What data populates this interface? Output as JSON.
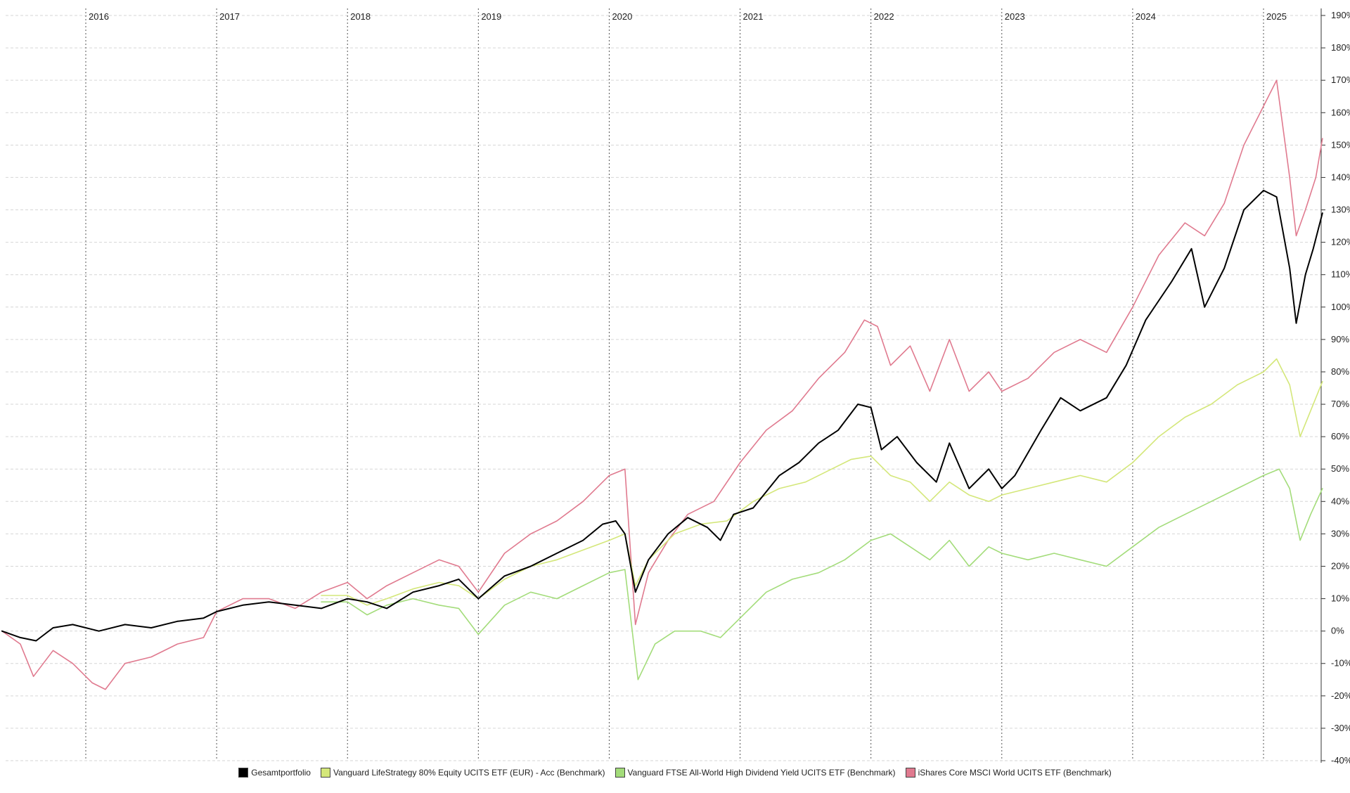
{
  "chart_data": {
    "type": "line",
    "x_axis": {
      "labels": [
        "2016",
        "2017",
        "2018",
        "2019",
        "2020",
        "2021",
        "2022",
        "2023",
        "2024",
        "2025"
      ],
      "position": "top"
    },
    "y_axis": {
      "position": "right",
      "unit": "%",
      "ylim": [
        -40,
        190
      ],
      "ticks": [
        "190%",
        "180%",
        "170%",
        "160%",
        "150%",
        "140%",
        "130%",
        "120%",
        "110%",
        "100%",
        "90%",
        "80%",
        "70%",
        "60%",
        "50%",
        "40%",
        "30%",
        "20%",
        "10%",
        "0%",
        "-10%",
        "-20%",
        "-30%",
        "-40%"
      ]
    },
    "grid": "horizontal dashed, vertical dotted at year boundaries",
    "legend_position": "bottom",
    "series": [
      {
        "name": "Gesamtportfolio",
        "color": "#000000",
        "points": [
          [
            2015.36,
            0
          ],
          [
            2015.5,
            -2
          ],
          [
            2015.62,
            -3
          ],
          [
            2015.75,
            1
          ],
          [
            2015.9,
            2
          ],
          [
            2016.0,
            1
          ],
          [
            2016.1,
            0
          ],
          [
            2016.3,
            2
          ],
          [
            2016.5,
            1
          ],
          [
            2016.7,
            3
          ],
          [
            2016.9,
            4
          ],
          [
            2017.0,
            6
          ],
          [
            2017.2,
            8
          ],
          [
            2017.4,
            9
          ],
          [
            2017.6,
            8
          ],
          [
            2017.8,
            7
          ],
          [
            2018.0,
            10
          ],
          [
            2018.15,
            9
          ],
          [
            2018.3,
            7
          ],
          [
            2018.5,
            12
          ],
          [
            2018.7,
            14
          ],
          [
            2018.85,
            16
          ],
          [
            2019.0,
            10
          ],
          [
            2019.2,
            17
          ],
          [
            2019.4,
            20
          ],
          [
            2019.6,
            24
          ],
          [
            2019.8,
            28
          ],
          [
            2019.95,
            33
          ],
          [
            2020.05,
            34
          ],
          [
            2020.12,
            30
          ],
          [
            2020.2,
            12
          ],
          [
            2020.3,
            22
          ],
          [
            2020.45,
            30
          ],
          [
            2020.6,
            35
          ],
          [
            2020.75,
            32
          ],
          [
            2020.85,
            28
          ],
          [
            2020.95,
            36
          ],
          [
            2021.1,
            38
          ],
          [
            2021.3,
            48
          ],
          [
            2021.45,
            52
          ],
          [
            2021.6,
            58
          ],
          [
            2021.75,
            62
          ],
          [
            2021.9,
            70
          ],
          [
            2022.0,
            69
          ],
          [
            2022.08,
            56
          ],
          [
            2022.2,
            60
          ],
          [
            2022.35,
            52
          ],
          [
            2022.5,
            46
          ],
          [
            2022.6,
            58
          ],
          [
            2022.75,
            44
          ],
          [
            2022.9,
            50
          ],
          [
            2023.0,
            44
          ],
          [
            2023.1,
            48
          ],
          [
            2023.3,
            62
          ],
          [
            2023.45,
            72
          ],
          [
            2023.6,
            68
          ],
          [
            2023.8,
            72
          ],
          [
            2023.95,
            82
          ],
          [
            2024.1,
            96
          ],
          [
            2024.3,
            108
          ],
          [
            2024.45,
            118
          ],
          [
            2024.55,
            100
          ],
          [
            2024.7,
            112
          ],
          [
            2024.85,
            130
          ],
          [
            2025.0,
            136
          ],
          [
            2025.1,
            134
          ],
          [
            2025.2,
            112
          ],
          [
            2025.25,
            95
          ],
          [
            2025.32,
            110
          ],
          [
            2025.38,
            118
          ],
          [
            2025.45,
            129
          ]
        ]
      },
      {
        "name": "Vanguard LifeStrategy 80% Equity UCITS ETF (EUR) - Acc (Benchmark)",
        "color": "#d4e77a",
        "points": [
          [
            2017.8,
            11
          ],
          [
            2018.0,
            11
          ],
          [
            2018.15,
            8
          ],
          [
            2018.3,
            10
          ],
          [
            2018.5,
            13
          ],
          [
            2018.7,
            15
          ],
          [
            2018.85,
            14
          ],
          [
            2019.0,
            10
          ],
          [
            2019.2,
            16
          ],
          [
            2019.4,
            20
          ],
          [
            2019.6,
            22
          ],
          [
            2019.8,
            25
          ],
          [
            2020.0,
            28
          ],
          [
            2020.12,
            30
          ],
          [
            2020.2,
            14
          ],
          [
            2020.3,
            22
          ],
          [
            2020.5,
            30
          ],
          [
            2020.7,
            33
          ],
          [
            2020.9,
            34
          ],
          [
            2021.1,
            40
          ],
          [
            2021.3,
            44
          ],
          [
            2021.5,
            46
          ],
          [
            2021.7,
            50
          ],
          [
            2021.85,
            53
          ],
          [
            2022.0,
            54
          ],
          [
            2022.15,
            48
          ],
          [
            2022.3,
            46
          ],
          [
            2022.45,
            40
          ],
          [
            2022.6,
            46
          ],
          [
            2022.75,
            42
          ],
          [
            2022.9,
            40
          ],
          [
            2023.0,
            42
          ],
          [
            2023.2,
            44
          ],
          [
            2023.4,
            46
          ],
          [
            2023.6,
            48
          ],
          [
            2023.8,
            46
          ],
          [
            2024.0,
            52
          ],
          [
            2024.2,
            60
          ],
          [
            2024.4,
            66
          ],
          [
            2024.6,
            70
          ],
          [
            2024.8,
            76
          ],
          [
            2025.0,
            80
          ],
          [
            2025.1,
            84
          ],
          [
            2025.2,
            76
          ],
          [
            2025.28,
            60
          ],
          [
            2025.36,
            68
          ],
          [
            2025.45,
            77
          ]
        ]
      },
      {
        "name": "Vanguard FTSE All-World High Dividend Yield UCITS ETF (Benchmark)",
        "color": "#a3dc7a",
        "points": [
          [
            2017.8,
            9
          ],
          [
            2018.0,
            9
          ],
          [
            2018.15,
            5
          ],
          [
            2018.3,
            8
          ],
          [
            2018.5,
            10
          ],
          [
            2018.7,
            8
          ],
          [
            2018.85,
            7
          ],
          [
            2019.0,
            -1
          ],
          [
            2019.2,
            8
          ],
          [
            2019.4,
            12
          ],
          [
            2019.6,
            10
          ],
          [
            2019.8,
            14
          ],
          [
            2020.0,
            18
          ],
          [
            2020.12,
            19
          ],
          [
            2020.22,
            -15
          ],
          [
            2020.35,
            -4
          ],
          [
            2020.5,
            0
          ],
          [
            2020.7,
            0
          ],
          [
            2020.85,
            -2
          ],
          [
            2021.0,
            4
          ],
          [
            2021.2,
            12
          ],
          [
            2021.4,
            16
          ],
          [
            2021.6,
            18
          ],
          [
            2021.8,
            22
          ],
          [
            2022.0,
            28
          ],
          [
            2022.15,
            30
          ],
          [
            2022.3,
            26
          ],
          [
            2022.45,
            22
          ],
          [
            2022.6,
            28
          ],
          [
            2022.75,
            20
          ],
          [
            2022.9,
            26
          ],
          [
            2023.0,
            24
          ],
          [
            2023.2,
            22
          ],
          [
            2023.4,
            24
          ],
          [
            2023.6,
            22
          ],
          [
            2023.8,
            20
          ],
          [
            2024.0,
            26
          ],
          [
            2024.2,
            32
          ],
          [
            2024.4,
            36
          ],
          [
            2024.6,
            40
          ],
          [
            2024.8,
            44
          ],
          [
            2025.0,
            48
          ],
          [
            2025.12,
            50
          ],
          [
            2025.2,
            44
          ],
          [
            2025.28,
            28
          ],
          [
            2025.36,
            36
          ],
          [
            2025.45,
            44
          ]
        ]
      },
      {
        "name": "iShares Core MSCI World UCITS ETF (Benchmark)",
        "color": "#e07a8f",
        "points": [
          [
            2015.36,
            0
          ],
          [
            2015.5,
            -4
          ],
          [
            2015.6,
            -14
          ],
          [
            2015.75,
            -6
          ],
          [
            2015.9,
            -10
          ],
          [
            2016.05,
            -16
          ],
          [
            2016.15,
            -18
          ],
          [
            2016.3,
            -10
          ],
          [
            2016.5,
            -8
          ],
          [
            2016.7,
            -4
          ],
          [
            2016.9,
            -2
          ],
          [
            2017.0,
            6
          ],
          [
            2017.2,
            10
          ],
          [
            2017.4,
            10
          ],
          [
            2017.6,
            7
          ],
          [
            2017.8,
            12
          ],
          [
            2018.0,
            15
          ],
          [
            2018.15,
            10
          ],
          [
            2018.3,
            14
          ],
          [
            2018.5,
            18
          ],
          [
            2018.7,
            22
          ],
          [
            2018.85,
            20
          ],
          [
            2019.0,
            12
          ],
          [
            2019.2,
            24
          ],
          [
            2019.4,
            30
          ],
          [
            2019.6,
            34
          ],
          [
            2019.8,
            40
          ],
          [
            2020.0,
            48
          ],
          [
            2020.12,
            50
          ],
          [
            2020.2,
            2
          ],
          [
            2020.3,
            18
          ],
          [
            2020.45,
            28
          ],
          [
            2020.6,
            36
          ],
          [
            2020.8,
            40
          ],
          [
            2021.0,
            52
          ],
          [
            2021.2,
            62
          ],
          [
            2021.4,
            68
          ],
          [
            2021.6,
            78
          ],
          [
            2021.8,
            86
          ],
          [
            2021.95,
            96
          ],
          [
            2022.05,
            94
          ],
          [
            2022.15,
            82
          ],
          [
            2022.3,
            88
          ],
          [
            2022.45,
            74
          ],
          [
            2022.6,
            90
          ],
          [
            2022.75,
            74
          ],
          [
            2022.9,
            80
          ],
          [
            2023.0,
            74
          ],
          [
            2023.2,
            78
          ],
          [
            2023.4,
            86
          ],
          [
            2023.6,
            90
          ],
          [
            2023.8,
            86
          ],
          [
            2024.0,
            100
          ],
          [
            2024.2,
            116
          ],
          [
            2024.4,
            126
          ],
          [
            2024.55,
            122
          ],
          [
            2024.7,
            132
          ],
          [
            2024.85,
            150
          ],
          [
            2025.0,
            162
          ],
          [
            2025.1,
            170
          ],
          [
            2025.2,
            140
          ],
          [
            2025.25,
            122
          ],
          [
            2025.32,
            130
          ],
          [
            2025.4,
            140
          ],
          [
            2025.45,
            152
          ]
        ]
      }
    ]
  },
  "legend": [
    {
      "label": "Gesamtportfolio",
      "color": "#000000"
    },
    {
      "label": "Vanguard LifeStrategy 80% Equity UCITS ETF (EUR) - Acc (Benchmark)",
      "color": "#d4e77a"
    },
    {
      "label": "Vanguard FTSE All-World High Dividend Yield UCITS ETF (Benchmark)",
      "color": "#a3dc7a"
    },
    {
      "label": "iShares Core MSCI World UCITS ETF (Benchmark)",
      "color": "#e07a8f"
    }
  ]
}
